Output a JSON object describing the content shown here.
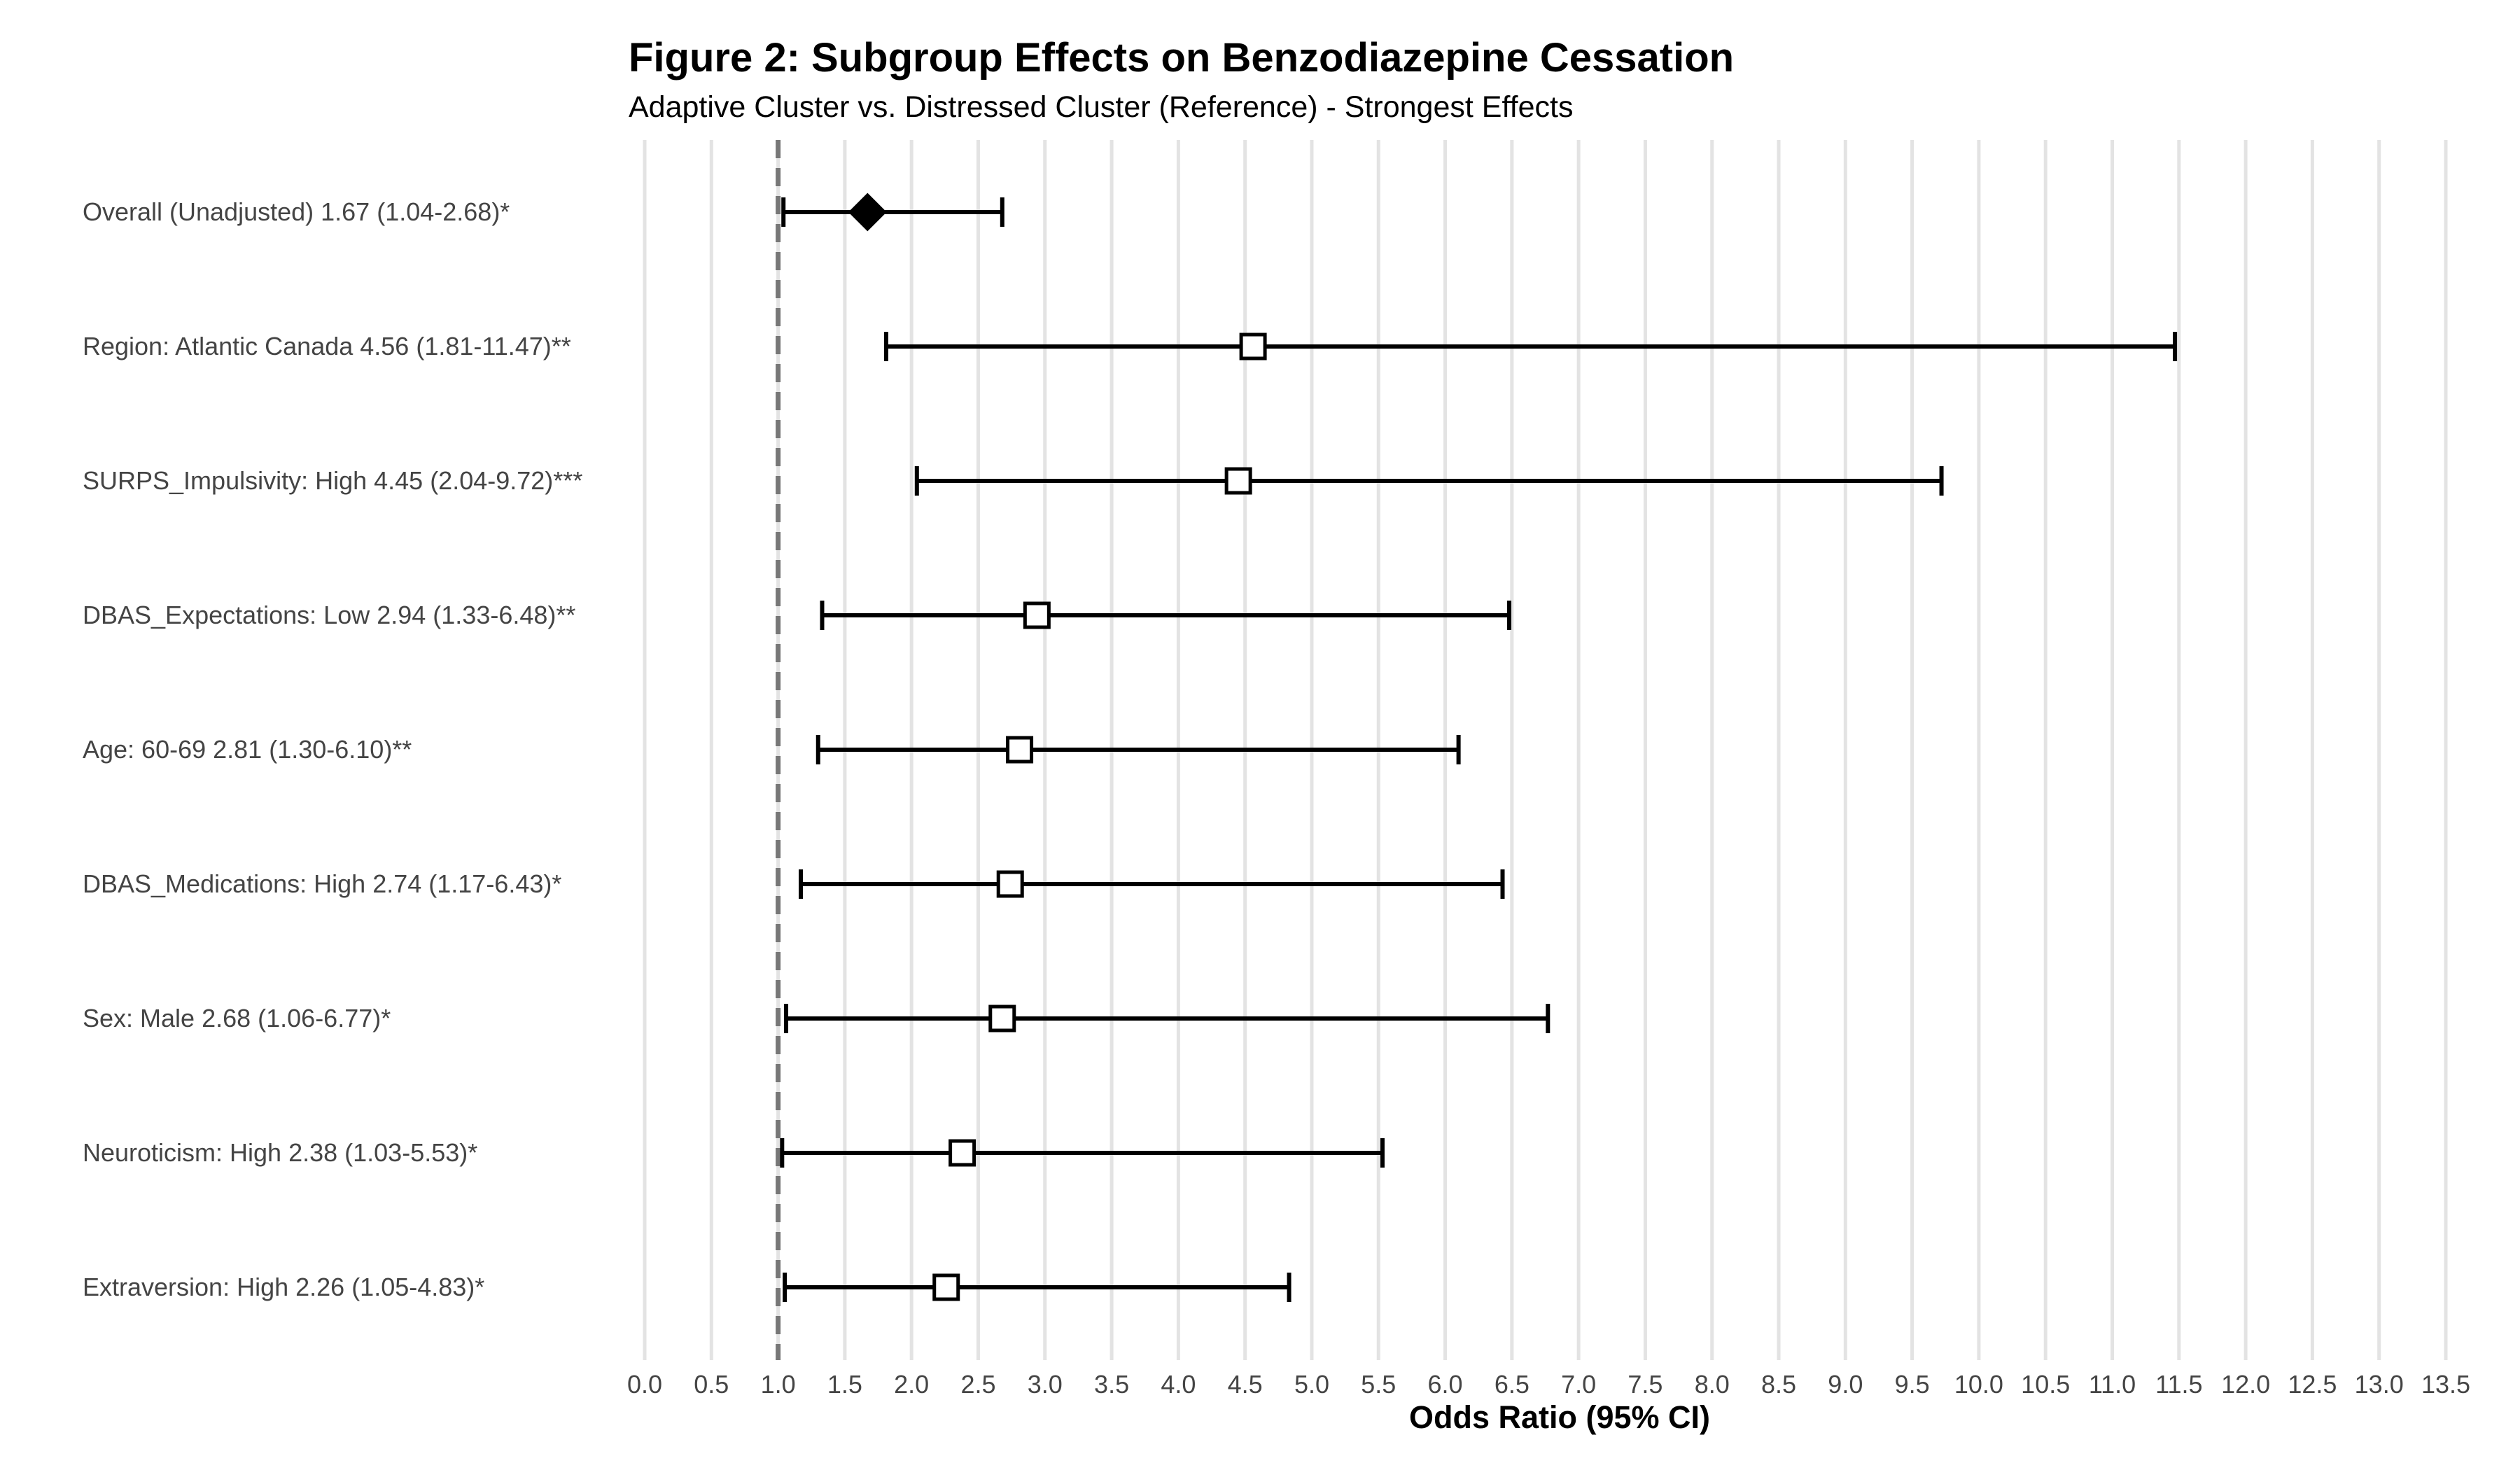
{
  "chart_data": {
    "type": "forest",
    "title": "Figure 2: Subgroup Effects on Benzodiazepine Cessation",
    "subtitle": "Adaptive Cluster vs. Distressed Cluster (Reference) - Strongest Effects",
    "xlabel": "Odds Ratio (95% CI)",
    "xlim": [
      0.0,
      13.5
    ],
    "x_ticks": [
      0.0,
      0.5,
      1.0,
      1.5,
      2.0,
      2.5,
      3.0,
      3.5,
      4.0,
      4.5,
      5.0,
      5.5,
      6.0,
      6.5,
      7.0,
      7.5,
      8.0,
      8.5,
      9.0,
      9.5,
      10.0,
      10.5,
      11.0,
      11.5,
      12.0,
      12.5,
      13.0,
      13.5
    ],
    "x_tick_labels": [
      "0.0",
      "0.5",
      "1.0",
      "1.5",
      "2.0",
      "2.5",
      "3.0",
      "3.5",
      "4.0",
      "4.5",
      "5.0",
      "5.5",
      "6.0",
      "6.5",
      "7.0",
      "7.5",
      "8.0",
      "8.5",
      "9.0",
      "9.5",
      "10.0",
      "10.5",
      "11.0",
      "11.5",
      "12.0",
      "12.5",
      "13.0",
      "13.5"
    ],
    "reference_line": 1.0,
    "grid": true,
    "rows": [
      {
        "label": "Overall (Unadjusted)  1.67 (1.04-2.68)*",
        "or": 1.67,
        "lower": 1.04,
        "upper": 2.68,
        "marker": "diamond"
      },
      {
        "label": "Region: Atlantic Canada  4.56 (1.81-11.47)**",
        "or": 4.56,
        "lower": 1.81,
        "upper": 11.47,
        "marker": "square"
      },
      {
        "label": "SURPS_Impulsivity: High  4.45 (2.04-9.72)***",
        "or": 4.45,
        "lower": 2.04,
        "upper": 9.72,
        "marker": "square"
      },
      {
        "label": "DBAS_Expectations: Low  2.94 (1.33-6.48)**",
        "or": 2.94,
        "lower": 1.33,
        "upper": 6.48,
        "marker": "square"
      },
      {
        "label": "Age: 60-69  2.81 (1.30-6.10)**",
        "or": 2.81,
        "lower": 1.3,
        "upper": 6.1,
        "marker": "square"
      },
      {
        "label": "DBAS_Medications: High  2.74 (1.17-6.43)*",
        "or": 2.74,
        "lower": 1.17,
        "upper": 6.43,
        "marker": "square"
      },
      {
        "label": "Sex: Male  2.68 (1.06-6.77)*",
        "or": 2.68,
        "lower": 1.06,
        "upper": 6.77,
        "marker": "square"
      },
      {
        "label": "Neuroticism: High  2.38 (1.03-5.53)*",
        "or": 2.38,
        "lower": 1.03,
        "upper": 5.53,
        "marker": "square"
      },
      {
        "label": "Extraversion: High  2.26 (1.05-4.83)*",
        "or": 2.26,
        "lower": 1.05,
        "upper": 4.83,
        "marker": "square"
      }
    ]
  }
}
